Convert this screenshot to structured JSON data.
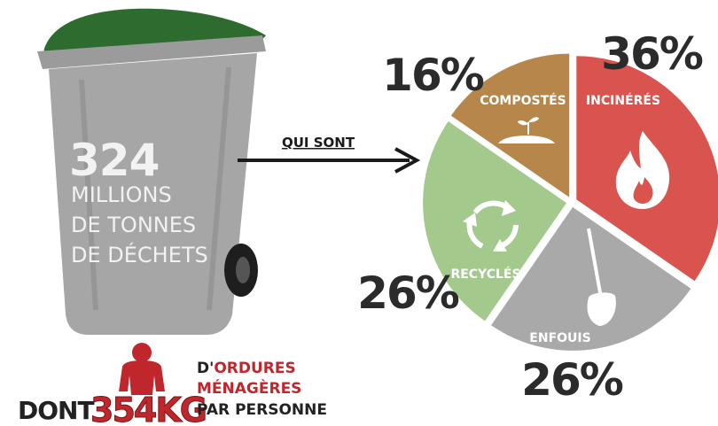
{
  "bin": {
    "amount": "324",
    "line1": "MILLIONS",
    "line2": "DE TONNES",
    "line3": "DE DÉCHETS",
    "body_color": "#a6a6a6",
    "lid_color": "#2e6b2e"
  },
  "arrow_label": "QUI SONT",
  "bottom": {
    "prefix": "DONT",
    "amount": "354KG",
    "line1_a": "D'",
    "line1_b": "ORDURES",
    "line2": "MÉNAGÈRES",
    "line3": "PAR PERSONNE",
    "accent_color": "#c0272d"
  },
  "chart_data": {
    "type": "pie",
    "slices": [
      {
        "label": "INCINÉRÉS",
        "value": 36,
        "display": "36%",
        "color": "#d9534f",
        "icon": "flame-icon"
      },
      {
        "label": "ENFOUIS",
        "value": 26,
        "display": "26%",
        "color": "#a9a9a9",
        "icon": "shovel-icon"
      },
      {
        "label": "RECYCLÉS",
        "value": 26,
        "display": "26%",
        "color": "#a3c98c",
        "icon": "recycle-icon"
      },
      {
        "label": "COMPOSTÉS",
        "value": 16,
        "display": "16%",
        "color": "#b7864a",
        "icon": "compost-icon"
      }
    ]
  }
}
